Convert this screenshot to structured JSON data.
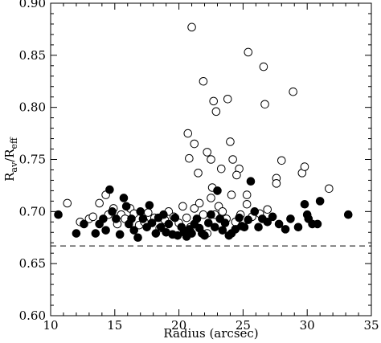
{
  "chart_data": {
    "type": "scatter",
    "title": "",
    "xlabel": "Radius (arcsec)",
    "ylabel": {
      "main": "R",
      "sub1": "av",
      "slash": "/R",
      "sub2": "eff"
    },
    "xlim": [
      10,
      35
    ],
    "ylim": [
      0.6,
      0.9
    ],
    "xticks": [
      10,
      15,
      20,
      25,
      30,
      35
    ],
    "yticks": [
      0.6,
      0.65,
      0.7,
      0.75,
      0.8,
      0.85,
      0.9
    ],
    "xtick_labels": [
      "10",
      "15",
      "20",
      "25",
      "30",
      "35"
    ],
    "ytick_labels": [
      "0.60",
      "0.65",
      "0.70",
      "0.75",
      "0.80",
      "0.85",
      "0.90"
    ],
    "grid": false,
    "reference_line": {
      "y": 0.667,
      "style": "dashed"
    },
    "series": [
      {
        "marker": "open-circle",
        "points": [
          [
            11.3,
            0.708
          ],
          [
            12.3,
            0.69
          ],
          [
            13.0,
            0.693
          ],
          [
            13.3,
            0.695
          ],
          [
            13.8,
            0.708
          ],
          [
            14.3,
            0.716
          ],
          [
            14.5,
            0.697
          ],
          [
            14.9,
            0.703
          ],
          [
            15.2,
            0.688
          ],
          [
            15.5,
            0.697
          ],
          [
            15.8,
            0.693
          ],
          [
            16.2,
            0.703
          ],
          [
            16.5,
            0.698
          ],
          [
            16.9,
            0.687
          ],
          [
            17.3,
            0.69
          ],
          [
            17.6,
            0.699
          ],
          [
            18.1,
            0.694
          ],
          [
            18.5,
            0.684
          ],
          [
            18.9,
            0.692
          ],
          [
            19.2,
            0.7
          ],
          [
            19.6,
            0.695
          ],
          [
            20.0,
            0.689
          ],
          [
            20.3,
            0.705
          ],
          [
            20.6,
            0.694
          ],
          [
            20.9,
            0.685
          ],
          [
            21.2,
            0.703
          ],
          [
            21.6,
            0.708
          ],
          [
            21.9,
            0.697
          ],
          [
            22.2,
            0.679
          ],
          [
            22.5,
            0.713
          ],
          [
            22.8,
            0.697
          ],
          [
            23.1,
            0.705
          ],
          [
            23.4,
            0.7
          ],
          [
            23.7,
            0.693
          ],
          [
            24.1,
            0.716
          ],
          [
            24.4,
            0.69
          ],
          [
            24.8,
            0.697
          ],
          [
            25.3,
            0.707
          ],
          [
            25.7,
            0.695
          ],
          [
            26.3,
            0.698
          ],
          [
            26.9,
            0.702
          ],
          [
            20.7,
            0.775
          ],
          [
            20.8,
            0.751
          ],
          [
            21.2,
            0.765
          ],
          [
            21.5,
            0.737
          ],
          [
            21.9,
            0.825
          ],
          [
            22.2,
            0.757
          ],
          [
            22.5,
            0.75
          ],
          [
            22.7,
            0.806
          ],
          [
            22.9,
            0.796
          ],
          [
            23.3,
            0.741
          ],
          [
            23.8,
            0.808
          ],
          [
            24.0,
            0.767
          ],
          [
            24.2,
            0.75
          ],
          [
            24.7,
            0.741
          ],
          [
            25.4,
            0.853
          ],
          [
            26.6,
            0.839
          ],
          [
            26.7,
            0.803
          ],
          [
            27.6,
            0.732
          ],
          [
            27.6,
            0.727
          ],
          [
            28.0,
            0.749
          ],
          [
            28.9,
            0.815
          ],
          [
            29.6,
            0.737
          ],
          [
            29.8,
            0.743
          ],
          [
            31.7,
            0.722
          ],
          [
            21.0,
            0.877
          ],
          [
            25.3,
            0.716
          ],
          [
            22.6,
            0.723
          ],
          [
            24.5,
            0.735
          ]
        ]
      },
      {
        "marker": "filled-circle",
        "points": [
          [
            10.6,
            0.697
          ],
          [
            12.0,
            0.679
          ],
          [
            12.6,
            0.688
          ],
          [
            13.5,
            0.679
          ],
          [
            13.8,
            0.688
          ],
          [
            14.1,
            0.693
          ],
          [
            14.3,
            0.682
          ],
          [
            14.6,
            0.721
          ],
          [
            14.8,
            0.7
          ],
          [
            15.1,
            0.693
          ],
          [
            15.4,
            0.678
          ],
          [
            15.7,
            0.713
          ],
          [
            15.9,
            0.705
          ],
          [
            16.1,
            0.688
          ],
          [
            16.3,
            0.693
          ],
          [
            16.5,
            0.682
          ],
          [
            16.8,
            0.675
          ],
          [
            17.0,
            0.7
          ],
          [
            17.2,
            0.693
          ],
          [
            17.5,
            0.685
          ],
          [
            17.7,
            0.706
          ],
          [
            17.9,
            0.689
          ],
          [
            18.2,
            0.679
          ],
          [
            18.4,
            0.694
          ],
          [
            18.6,
            0.685
          ],
          [
            18.8,
            0.697
          ],
          [
            19.0,
            0.68
          ],
          [
            19.2,
            0.688
          ],
          [
            19.5,
            0.678
          ],
          [
            19.7,
            0.694
          ],
          [
            19.9,
            0.677
          ],
          [
            20.2,
            0.685
          ],
          [
            20.4,
            0.68
          ],
          [
            20.6,
            0.676
          ],
          [
            20.8,
            0.683
          ],
          [
            21.0,
            0.679
          ],
          [
            21.2,
            0.688
          ],
          [
            21.4,
            0.693
          ],
          [
            21.6,
            0.684
          ],
          [
            21.8,
            0.679
          ],
          [
            22.0,
            0.677
          ],
          [
            22.3,
            0.689
          ],
          [
            22.5,
            0.697
          ],
          [
            22.8,
            0.685
          ],
          [
            23.0,
            0.72
          ],
          [
            23.2,
            0.693
          ],
          [
            23.4,
            0.682
          ],
          [
            23.6,
            0.689
          ],
          [
            23.9,
            0.677
          ],
          [
            24.1,
            0.679
          ],
          [
            24.4,
            0.683
          ],
          [
            24.7,
            0.694
          ],
          [
            24.9,
            0.686
          ],
          [
            25.1,
            0.685
          ],
          [
            25.4,
            0.692
          ],
          [
            25.6,
            0.729
          ],
          [
            25.9,
            0.7
          ],
          [
            26.2,
            0.685
          ],
          [
            26.5,
            0.693
          ],
          [
            26.9,
            0.69
          ],
          [
            27.3,
            0.695
          ],
          [
            27.8,
            0.688
          ],
          [
            28.3,
            0.683
          ],
          [
            28.7,
            0.693
          ],
          [
            29.3,
            0.685
          ],
          [
            29.8,
            0.707
          ],
          [
            30.0,
            0.697
          ],
          [
            30.4,
            0.688
          ],
          [
            30.8,
            0.688
          ],
          [
            31.0,
            0.71
          ],
          [
            33.2,
            0.697
          ],
          [
            30.1,
            0.693
          ]
        ]
      }
    ]
  }
}
